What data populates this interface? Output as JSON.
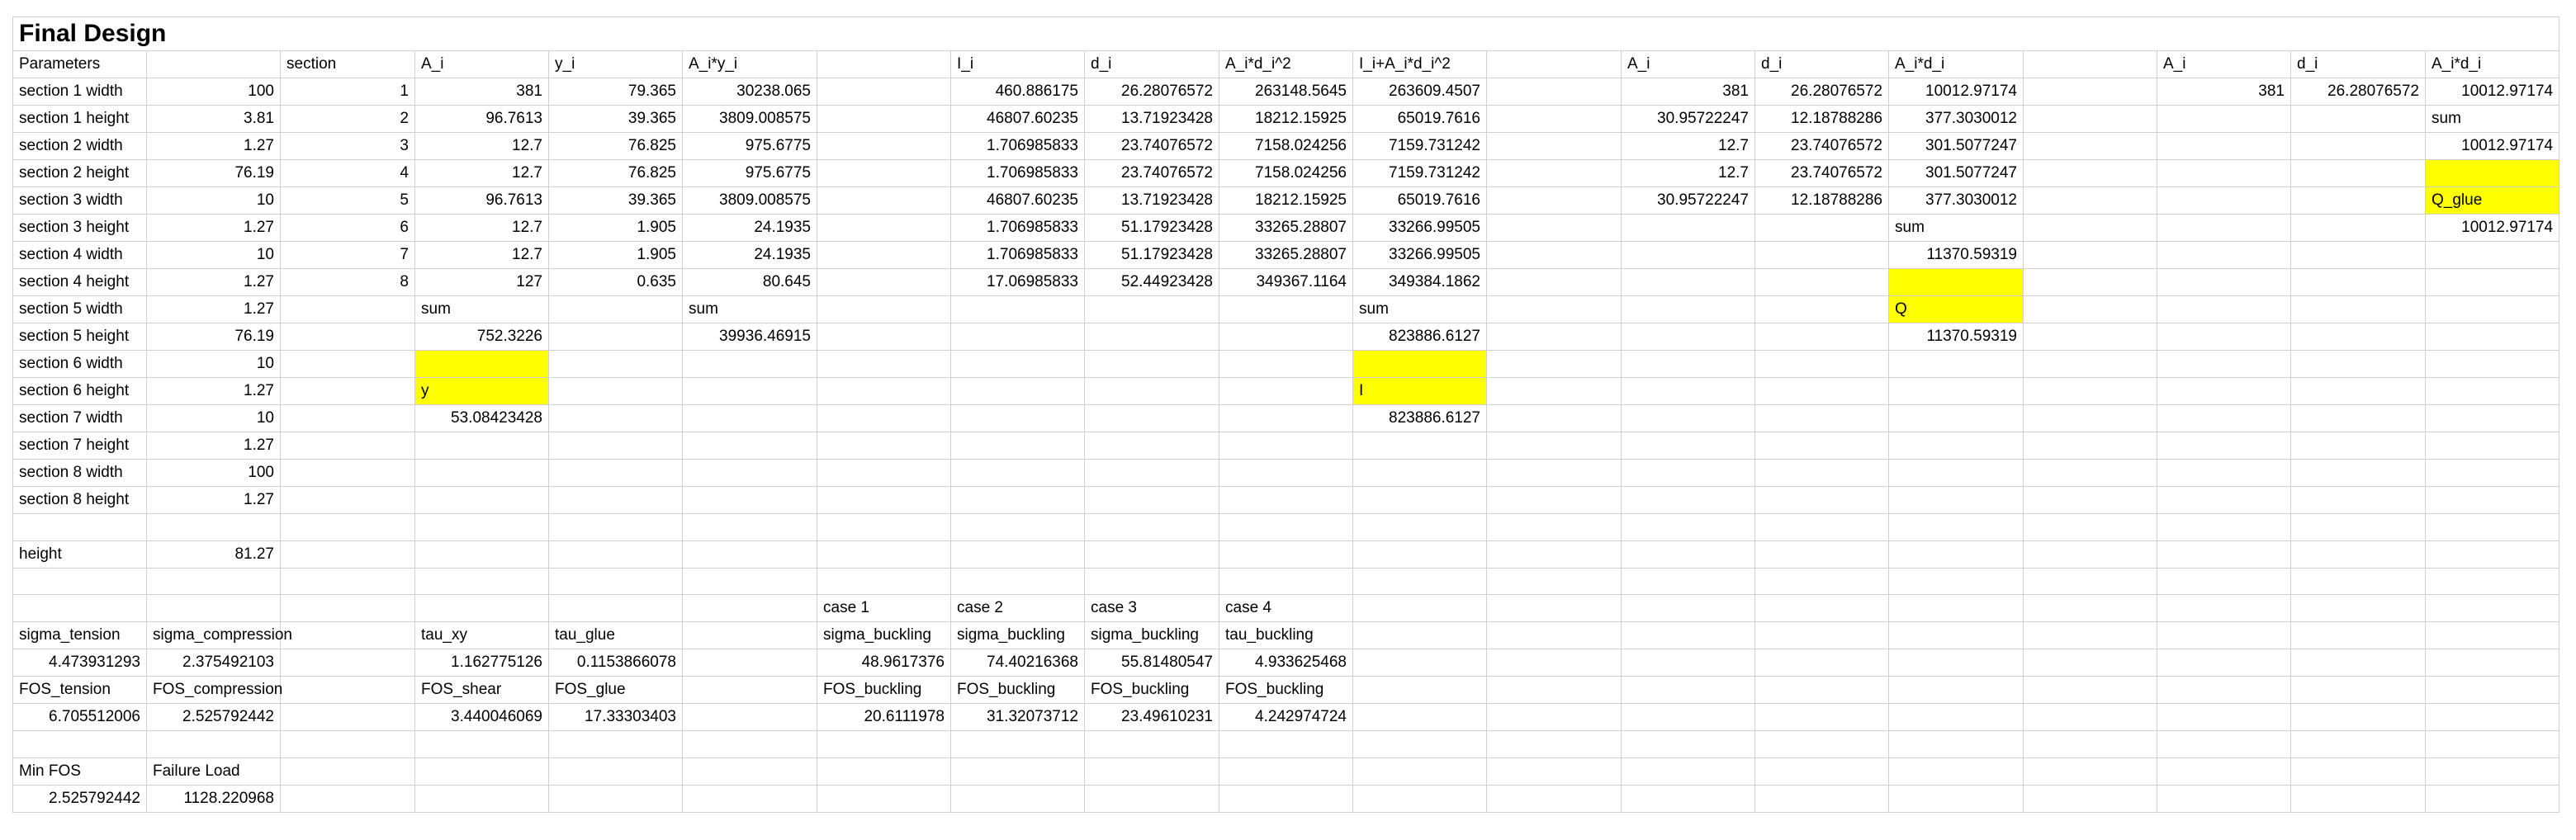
{
  "sheet": {
    "title": "Final Design",
    "highlight_color": "#ffff00",
    "grid_color": "#d0d0d0"
  },
  "rows": [
    [
      "Parameters",
      "",
      "section",
      "A_i",
      "y_i",
      "A_i*y_i",
      "",
      "I_i",
      "d_i",
      "A_i*d_i^2",
      "I_i+A_i*d_i^2",
      "",
      "A_i",
      "d_i",
      "A_i*d_i",
      "",
      "A_i",
      "d_i",
      "A_i*d_i"
    ],
    [
      "section 1 width",
      "100",
      "1",
      "381",
      "79.365",
      "30238.065",
      "",
      "460.886175",
      "26.28076572",
      "263148.5645",
      "263609.4507",
      "",
      "381",
      "26.28076572",
      "10012.97174",
      "",
      "381",
      "26.28076572",
      "10012.97174"
    ],
    [
      "section 1 height",
      "3.81",
      "2",
      "96.7613",
      "39.365",
      "3809.008575",
      "",
      "46807.60235",
      "13.71923428",
      "18212.15925",
      "65019.7616",
      "",
      "30.95722247",
      "12.18788286",
      "377.3030012",
      "",
      "",
      "",
      "sum"
    ],
    [
      "section 2 width",
      "1.27",
      "3",
      "12.7",
      "76.825",
      "975.6775",
      "",
      "1.706985833",
      "23.74076572",
      "7158.024256",
      "7159.731242",
      "",
      "12.7",
      "23.74076572",
      "301.5077247",
      "",
      "",
      "",
      "10012.97174"
    ],
    [
      "section 2 height",
      "76.19",
      "4",
      "12.7",
      "76.825",
      "975.6775",
      "",
      "1.706985833",
      "23.74076572",
      "7158.024256",
      "7159.731242",
      "",
      "12.7",
      "23.74076572",
      "301.5077247",
      "",
      "",
      "",
      ""
    ],
    [
      "section 3 width",
      "10",
      "5",
      "96.7613",
      "39.365",
      "3809.008575",
      "",
      "46807.60235",
      "13.71923428",
      "18212.15925",
      "65019.7616",
      "",
      "30.95722247",
      "12.18788286",
      "377.3030012",
      "",
      "",
      "",
      "Q_glue"
    ],
    [
      "section 3 height",
      "1.27",
      "6",
      "12.7",
      "1.905",
      "24.1935",
      "",
      "1.706985833",
      "51.17923428",
      "33265.28807",
      "33266.99505",
      "",
      "",
      "",
      "sum",
      "",
      "",
      "",
      "10012.97174"
    ],
    [
      "section 4 width",
      "10",
      "7",
      "12.7",
      "1.905",
      "24.1935",
      "",
      "1.706985833",
      "51.17923428",
      "33265.28807",
      "33266.99505",
      "",
      "",
      "",
      "11370.59319",
      "",
      "",
      "",
      ""
    ],
    [
      "section 4 height",
      "1.27",
      "8",
      "127",
      "0.635",
      "80.645",
      "",
      "17.06985833",
      "52.44923428",
      "349367.1164",
      "349384.1862",
      "",
      "",
      "",
      "",
      "",
      "",
      "",
      ""
    ],
    [
      "section 5 width",
      "1.27",
      "",
      "sum",
      "",
      "sum",
      "",
      "",
      "",
      "",
      "sum",
      "",
      "",
      "",
      "Q",
      "",
      "",
      "",
      ""
    ],
    [
      "section 5 height",
      "76.19",
      "",
      "752.3226",
      "",
      "39936.46915",
      "",
      "",
      "",
      "",
      "823886.6127",
      "",
      "",
      "",
      "11370.59319",
      "",
      "",
      "",
      ""
    ],
    [
      "section 6 width",
      "10",
      "",
      "",
      "",
      "",
      "",
      "",
      "",
      "",
      "",
      "",
      "",
      "",
      "",
      "",
      "",
      "",
      ""
    ],
    [
      "section 6 height",
      "1.27",
      "",
      "y",
      "",
      "",
      "",
      "",
      "",
      "",
      "I",
      "",
      "",
      "",
      "",
      "",
      "",
      "",
      ""
    ],
    [
      "section 7 width",
      "10",
      "",
      "53.08423428",
      "",
      "",
      "",
      "",
      "",
      "",
      "823886.6127",
      "",
      "",
      "",
      "",
      "",
      "",
      "",
      ""
    ],
    [
      "section 7 height",
      "1.27",
      "",
      "",
      "",
      "",
      "",
      "",
      "",
      "",
      "",
      "",
      "",
      "",
      "",
      "",
      "",
      "",
      ""
    ],
    [
      "section 8 width",
      "100",
      "",
      "",
      "",
      "",
      "",
      "",
      "",
      "",
      "",
      "",
      "",
      "",
      "",
      "",
      "",
      "",
      ""
    ],
    [
      "section 8 height",
      "1.27",
      "",
      "",
      "",
      "",
      "",
      "",
      "",
      "",
      "",
      "",
      "",
      "",
      "",
      "",
      "",
      "",
      ""
    ],
    [
      "",
      "",
      "",
      "",
      "",
      "",
      "",
      "",
      "",
      "",
      "",
      "",
      "",
      "",
      "",
      "",
      "",
      "",
      ""
    ],
    [
      "height",
      "81.27",
      "",
      "",
      "",
      "",
      "",
      "",
      "",
      "",
      "",
      "",
      "",
      "",
      "",
      "",
      "",
      "",
      ""
    ],
    [
      "",
      "",
      "",
      "",
      "",
      "",
      "",
      "",
      "",
      "",
      "",
      "",
      "",
      "",
      "",
      "",
      "",
      "",
      ""
    ],
    [
      "",
      "",
      "",
      "",
      "",
      "",
      "case 1",
      "case 2",
      "case 3",
      "case 4",
      "",
      "",
      "",
      "",
      "",
      "",
      "",
      "",
      ""
    ],
    [
      "sigma_tension",
      "sigma_compression",
      "",
      "tau_xy",
      "tau_glue",
      "",
      "sigma_buckling",
      "sigma_buckling",
      "sigma_buckling",
      "tau_buckling",
      "",
      "",
      "",
      "",
      "",
      "",
      "",
      "",
      ""
    ],
    [
      "4.473931293",
      "2.375492103",
      "",
      "1.162775126",
      "0.1153866078",
      "",
      "48.9617376",
      "74.40216368",
      "55.81480547",
      "4.933625468",
      "",
      "",
      "",
      "",
      "",
      "",
      "",
      "",
      ""
    ],
    [
      "FOS_tension",
      "FOS_compression",
      "",
      "FOS_shear",
      "FOS_glue",
      "",
      "FOS_buckling",
      "FOS_buckling",
      "FOS_buckling",
      "FOS_buckling",
      "",
      "",
      "",
      "",
      "",
      "",
      "",
      "",
      ""
    ],
    [
      "6.705512006",
      "2.525792442",
      "",
      "3.440046069",
      "17.33303403",
      "",
      "20.6111978",
      "31.32073712",
      "23.49610231",
      "4.242974724",
      "",
      "",
      "",
      "",
      "",
      "",
      "",
      "",
      ""
    ],
    [
      "",
      "",
      "",
      "",
      "",
      "",
      "",
      "",
      "",
      "",
      "",
      "",
      "",
      "",
      "",
      "",
      "",
      "",
      ""
    ],
    [
      "Min FOS",
      "Failure Load",
      "",
      "",
      "",
      "",
      "",
      "",
      "",
      "",
      "",
      "",
      "",
      "",
      "",
      "",
      "",
      "",
      ""
    ],
    [
      "2.525792442",
      "1128.220968",
      "",
      "",
      "",
      "",
      "",
      "",
      "",
      "",
      "",
      "",
      "",
      "",
      "",
      "",
      "",
      "",
      ""
    ]
  ],
  "highlighted_cells": [
    "11-3",
    "12-3",
    "11-10",
    "12-10",
    "8-14",
    "9-14",
    "4-18",
    "5-18"
  ]
}
